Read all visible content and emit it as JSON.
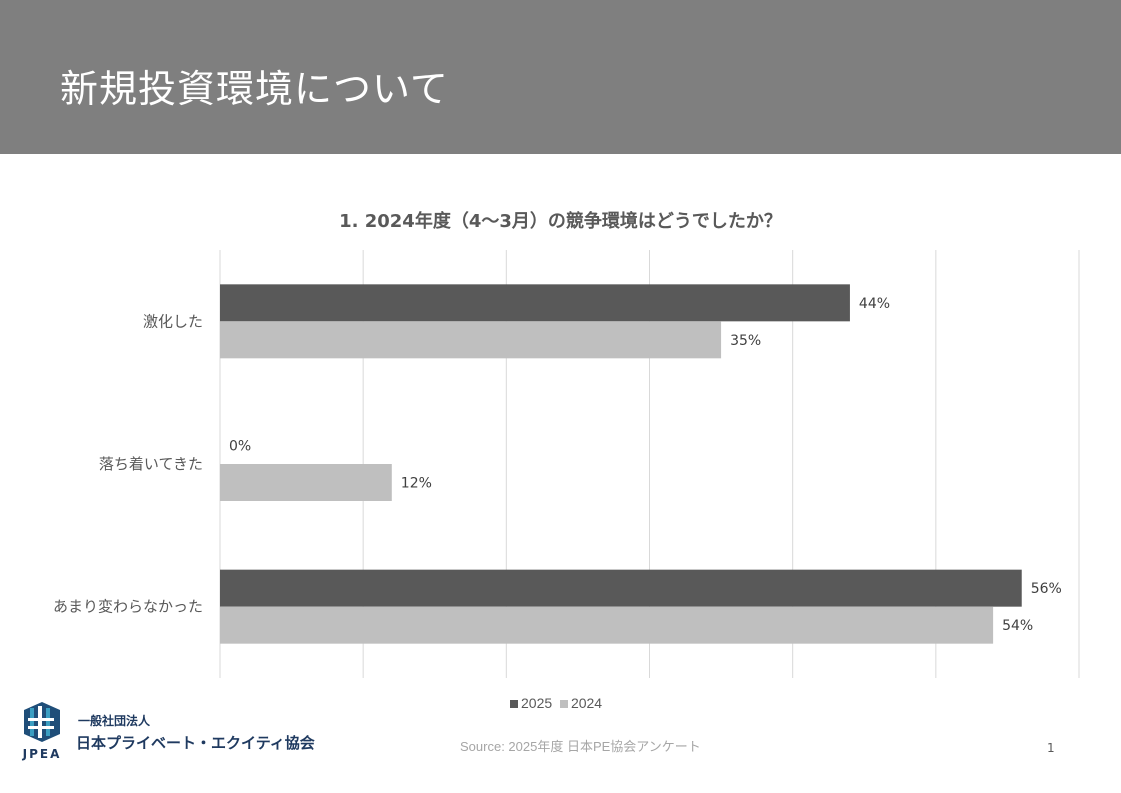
{
  "header": {
    "title": "新規投資環境について"
  },
  "chart_data": {
    "type": "bar",
    "orientation": "horizontal",
    "title": "1. 2024年度（4〜3月）の競争環境はどうでしたか？",
    "categories": [
      "激化した",
      "落ち着いてきた",
      "あまり変わらなかった"
    ],
    "series": [
      {
        "name": "2025",
        "values": [
          44,
          0,
          56
        ],
        "color": "#595959"
      },
      {
        "name": "2024",
        "values": [
          35,
          12,
          54
        ],
        "color": "#bfbfbf"
      }
    ],
    "xlim": [
      0,
      60
    ],
    "grid_step": 10,
    "grid": true,
    "value_suffix": "%",
    "legend": "bottom"
  },
  "footer": {
    "source": "Source: 2025年度 日本PE協会アンケート",
    "page_number": "1",
    "org_line1": "一般社団法人",
    "org_line2": "日本プライベート・エクイティ協会",
    "logo_text": "JPEA"
  }
}
